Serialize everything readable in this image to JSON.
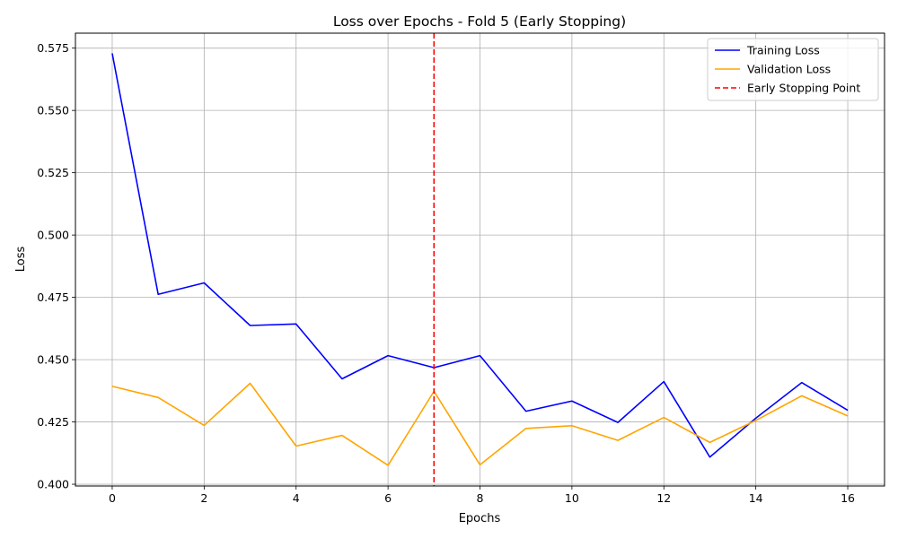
{
  "chart_data": {
    "type": "line",
    "title": "Loss over Epochs - Fold 5 (Early Stopping)",
    "xlabel": "Epochs",
    "ylabel": "Loss",
    "xlim": [
      -0.8,
      16.8
    ],
    "ylim": [
      0.3993,
      0.581
    ],
    "xticks": [
      0,
      2,
      4,
      6,
      8,
      10,
      12,
      14,
      16
    ],
    "yticks": [
      0.4,
      0.425,
      0.45,
      0.475,
      0.5,
      0.525,
      0.55,
      0.575
    ],
    "ytick_labels": [
      "0.400",
      "0.425",
      "0.450",
      "0.475",
      "0.500",
      "0.525",
      "0.550",
      "0.575"
    ],
    "grid": true,
    "legend_position": "top-right",
    "x": [
      0,
      1,
      2,
      3,
      4,
      5,
      6,
      7,
      8,
      9,
      10,
      11,
      12,
      13,
      14,
      15,
      16
    ],
    "series": [
      {
        "name": "Training Loss",
        "color": "#0000ff",
        "style": "solid",
        "values": [
          0.5729,
          0.4762,
          0.4808,
          0.4637,
          0.4643,
          0.4423,
          0.4516,
          0.4468,
          0.4516,
          0.4293,
          0.4334,
          0.4248,
          0.4412,
          0.4109,
          0.4265,
          0.4408,
          0.4297
        ]
      },
      {
        "name": "Validation Loss",
        "color": "#ffa500",
        "style": "solid",
        "values": [
          0.4393,
          0.4348,
          0.4236,
          0.4405,
          0.4153,
          0.4196,
          0.4076,
          0.4373,
          0.4078,
          0.4224,
          0.4235,
          0.4176,
          0.4268,
          0.4168,
          0.4256,
          0.4355,
          0.4274
        ]
      }
    ],
    "vlines": [
      {
        "name": "Early Stopping Point",
        "x": 7,
        "color": "#ff0000",
        "style": "dashed"
      }
    ]
  }
}
